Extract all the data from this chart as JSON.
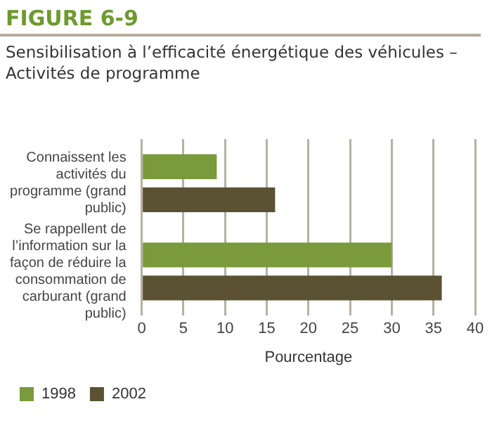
{
  "chart_data": {
    "type": "bar",
    "orientation": "horizontal",
    "title": "FIGURE 6-9",
    "subtitle": "Sensibilisation à l’efficacité énergétique des véhicules – Activités de programme",
    "xlabel": "Pourcentage",
    "categories": [
      "Connaissent les activités du programme (grand public)",
      "Se rappellent de l’information sur la façon de réduire la consommation de carburant (grand public)"
    ],
    "series": [
      {
        "name": "1998",
        "color": "#7a9a3c",
        "values": [
          9,
          30
        ]
      },
      {
        "name": "2002",
        "color": "#5a5232",
        "values": [
          16,
          36
        ]
      }
    ],
    "xlim": [
      0,
      40
    ],
    "xticks": [
      0,
      5,
      10,
      15,
      20,
      25,
      30,
      35,
      40
    ],
    "grid": "x",
    "legend": "bottom left"
  }
}
